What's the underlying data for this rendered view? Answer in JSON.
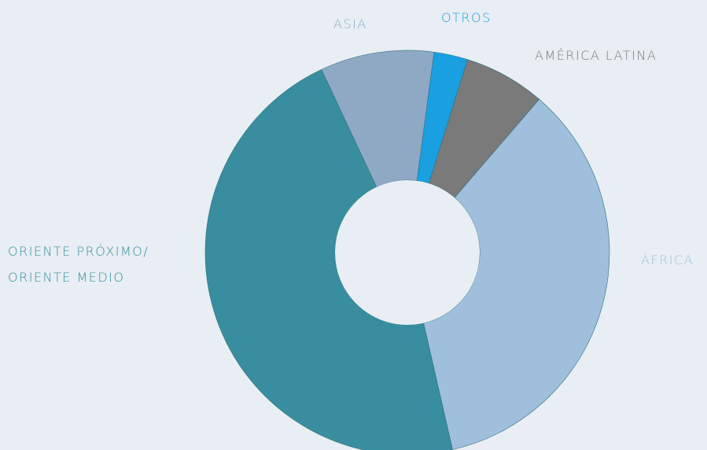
{
  "chart_data": {
    "type": "donut",
    "categories": [
      "OTROS",
      "AMÉRICA LATINA",
      "ÁFRICA",
      "ORIENTE PRÓXIMO/\nORIENTE MEDIO",
      "ASIA"
    ],
    "values": [
      2.7,
      6.5,
      35.1,
      46.6,
      9.1
    ],
    "colors": [
      "#1a9fe0",
      "#7a7a7a",
      "#a0bfdc",
      "#388e9e",
      "#8fa9c4"
    ]
  }
}
